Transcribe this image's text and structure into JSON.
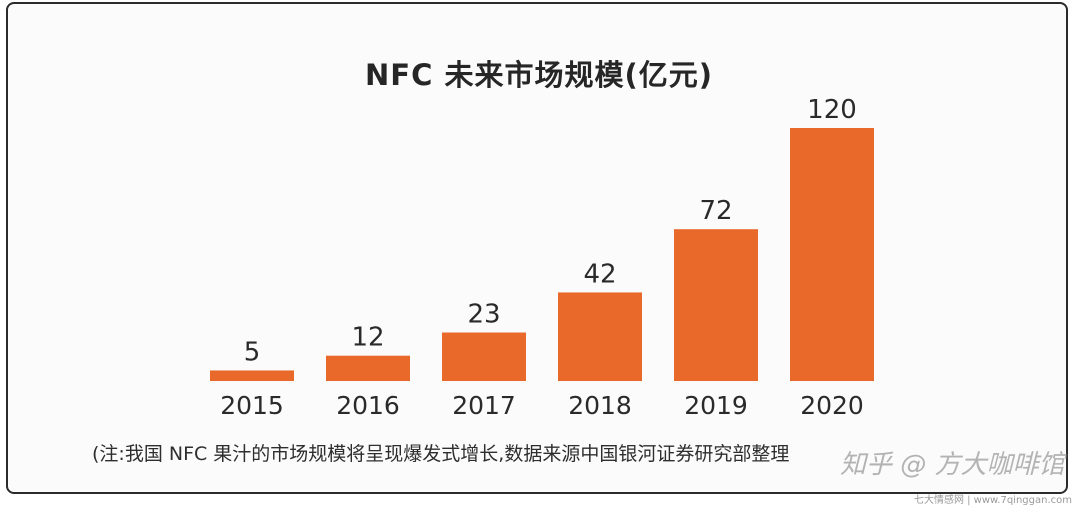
{
  "chart_data": {
    "type": "bar",
    "title": "NFC 未来市场规模(亿元)",
    "categories": [
      "2015",
      "2016",
      "2017",
      "2018",
      "2019",
      "2020"
    ],
    "values": [
      5,
      12,
      23,
      42,
      72,
      120
    ],
    "data_labels": [
      "5",
      "12",
      "23",
      "42",
      "72",
      "120"
    ],
    "xlabel": "",
    "ylabel": "",
    "ylim": [
      0,
      120
    ],
    "grid": false,
    "legend": "none",
    "bar_color": "#e8692a"
  },
  "note": "(注:我国 NFC 果汁的市场规模将呈现爆发式增长,数据来源中国银河证券研究部整理",
  "watermark": "知乎 @ 方大咖啡馆",
  "site_mark": "七大情感网 | www.7qinggan.com"
}
